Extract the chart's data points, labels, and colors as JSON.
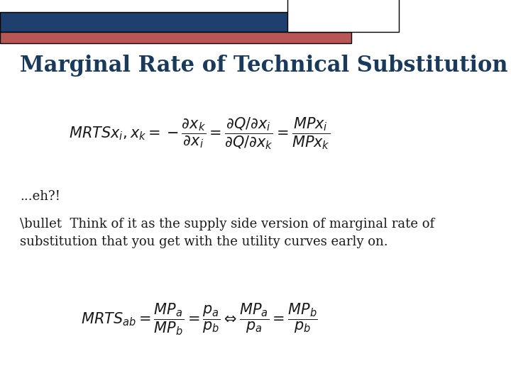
{
  "title": "Marginal Rate of Technical Substitution",
  "title_color": "#1a3a5c",
  "title_fontsize": 22,
  "background_color": "#ffffff",
  "top_bar_color": "#1f3f6e",
  "bottom_bar_color": "#b85555",
  "top_bar_height": 0.055,
  "second_bar_height": 0.03,
  "eq1": "MRTSx_{i},x_{k} = -\\dfrac{\\partial x_{k}}{\\partial x_{i}} = \\dfrac{\\partial Q / \\partial x_{i}}{\\partial Q / \\partial x_{k}} = \\dfrac{MPx_{i}}{MPx_{k}}",
  "text_eh": "...eh?!",
  "text_think": "\\bullet  Think of it as the supply side version of marginal rate of\nsubstitution that you get with the utility curves early on.",
  "eq2": "MRTS_{ab} = \\dfrac{MP_{a}}{MP_{b}} = \\dfrac{p_{a}}{p_{b}} \\Leftrightarrow \\dfrac{MP_{a}}{p_{a}} = \\dfrac{MP_{b}}{p_{b}}",
  "text_fontsize": 13,
  "eq_fontsize": 15,
  "eq_color": "#1a1a1a",
  "text_color": "#1a1a1a"
}
